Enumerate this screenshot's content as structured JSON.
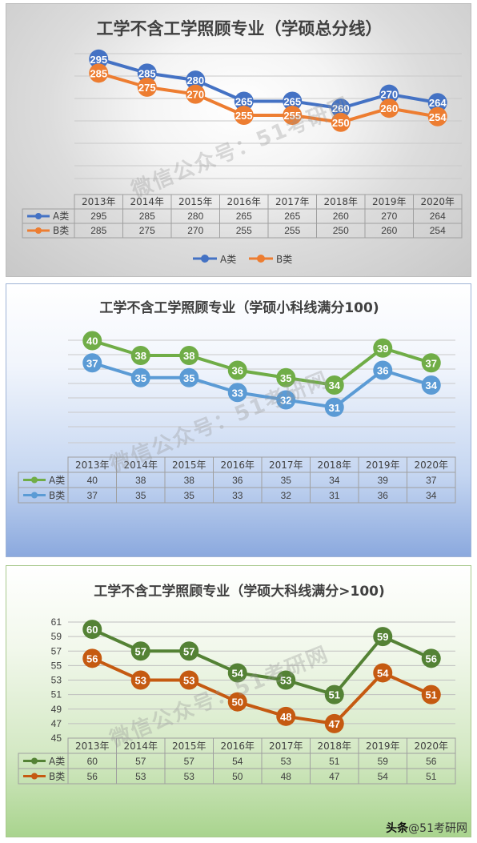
{
  "chart_data": [
    {
      "type": "line",
      "title": "工学不含工学照顾专业（学硕总分线）",
      "categories": [
        "2013年",
        "2014年",
        "2015年",
        "2016年",
        "2017年",
        "2018年",
        "2019年",
        "2020年"
      ],
      "series": [
        {
          "name": "A类",
          "values": [
            295,
            285,
            280,
            265,
            265,
            260,
            270,
            264
          ],
          "color": "#4472c4"
        },
        {
          "name": "B类",
          "values": [
            285,
            275,
            270,
            255,
            255,
            250,
            260,
            254
          ],
          "color": "#ed7d31"
        }
      ],
      "ylim": [
        210,
        300
      ],
      "y_axis_labels": false,
      "legend": "bottom",
      "grid": true
    },
    {
      "type": "line",
      "title": "工学不含工学照顾专业（学硕小科线满分100)",
      "categories": [
        "2013年",
        "2014年",
        "2015年",
        "2016年",
        "2017年",
        "2018年",
        "2019年",
        "2020年"
      ],
      "series": [
        {
          "name": "A类",
          "values": [
            40,
            38,
            38,
            36,
            35,
            34,
            39,
            37
          ],
          "color": "#70ad47"
        },
        {
          "name": "B类",
          "values": [
            37,
            35,
            35,
            33,
            32,
            31,
            36,
            34
          ],
          "color": "#5b9bd5"
        }
      ],
      "ylim": [
        26,
        42
      ],
      "y_axis_labels": false,
      "grid": true
    },
    {
      "type": "line",
      "title": "工学不含工学照顾专业（学硕大科线满分>100)",
      "categories": [
        "2013年",
        "2014年",
        "2015年",
        "2016年",
        "2017年",
        "2018年",
        "2019年",
        "2020年"
      ],
      "series": [
        {
          "name": "A类",
          "values": [
            60,
            57,
            57,
            54,
            53,
            51,
            59,
            56
          ],
          "color": "#548235"
        },
        {
          "name": "B类",
          "values": [
            56,
            53,
            53,
            50,
            48,
            47,
            54,
            51
          ],
          "color": "#c55a11"
        }
      ],
      "ylim": [
        45,
        61
      ],
      "yticks": [
        45,
        47,
        49,
        51,
        53,
        55,
        57,
        59,
        61
      ],
      "y_axis_labels": true,
      "grid": true
    }
  ],
  "watermark": "微信公众号：51考研网",
  "footer": {
    "prefix": "头条",
    "handle": "@51考研网"
  }
}
